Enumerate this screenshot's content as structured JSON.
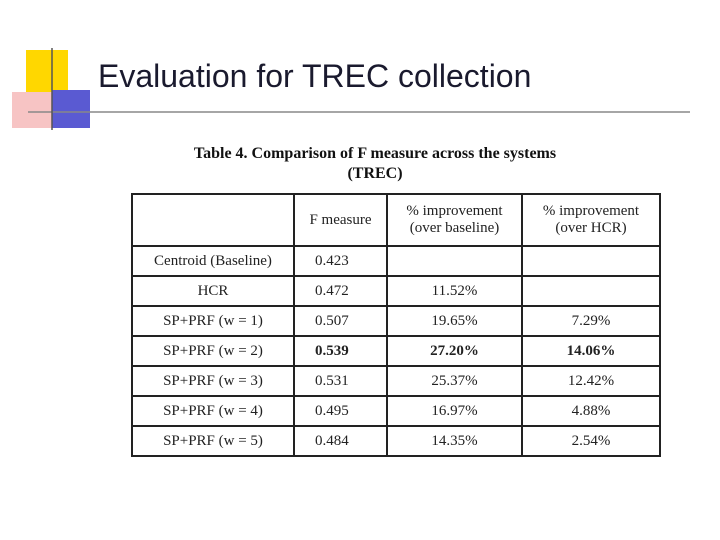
{
  "header": {
    "title": "Evaluation for TREC collection"
  },
  "table": {
    "caption": [
      "Table 4. Comparison of F measure across the systems",
      "(TREC)"
    ],
    "columns": [
      "",
      "F measure",
      "% improvement (over baseline)",
      "% improvement (over HCR)"
    ],
    "rows": [
      [
        "Centroid (Baseline)",
        "0.423",
        "",
        ""
      ],
      [
        "HCR",
        "0.472",
        "11.52%",
        ""
      ],
      [
        "SP+PRF (w = 1)",
        "0.507",
        "19.65%",
        "7.29%"
      ],
      [
        "SP+PRF (w = 2)",
        "0.539",
        "27.20%",
        "14.06%"
      ],
      [
        "SP+PRF (w = 3)",
        "0.531",
        "25.37%",
        "12.42%"
      ],
      [
        "SP+PRF (w = 4)",
        "0.495",
        "16.97%",
        "4.88%"
      ],
      [
        "SP+PRF (w = 5)",
        "0.484",
        "14.35%",
        "2.54%"
      ]
    ]
  }
}
